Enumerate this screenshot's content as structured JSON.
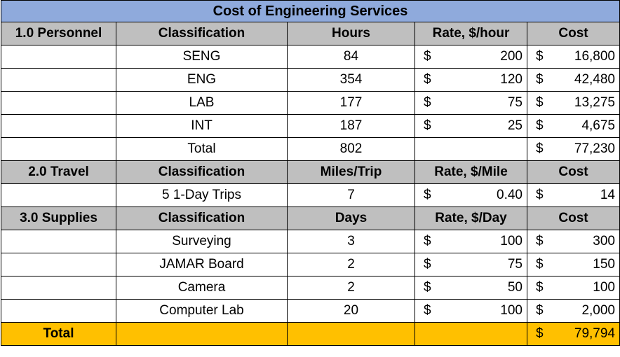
{
  "title": "Cost of Engineering Services",
  "personnel": {
    "section": "1.0 Personnel",
    "headers": [
      "Classification",
      "Hours",
      "Rate, $/hour",
      "Cost"
    ],
    "rows": [
      {
        "classification": "SENG",
        "hours": "84",
        "rate": "200",
        "cost": "16,800"
      },
      {
        "classification": "ENG",
        "hours": "354",
        "rate": "120",
        "cost": "42,480"
      },
      {
        "classification": "LAB",
        "hours": "177",
        "rate": "75",
        "cost": "13,275"
      },
      {
        "classification": "INT",
        "hours": "187",
        "rate": "25",
        "cost": "4,675"
      }
    ],
    "total": {
      "label": "Total",
      "hours": "802",
      "cost": "77,230"
    }
  },
  "travel": {
    "section": "2.0 Travel",
    "headers": [
      "Classification",
      "Miles/Trip",
      "Rate, $/Mile",
      "Cost"
    ],
    "rows": [
      {
        "classification": "5 1-Day Trips",
        "qty": "7",
        "rate": "0.40",
        "cost": "14"
      }
    ]
  },
  "supplies": {
    "section": "3.0 Supplies",
    "headers": [
      "Classification",
      "Days",
      "Rate, $/Day",
      "Cost"
    ],
    "rows": [
      {
        "classification": "Surveying",
        "qty": "3",
        "rate": "100",
        "cost": "300"
      },
      {
        "classification": "JAMAR Board",
        "qty": "2",
        "rate": "75",
        "cost": "150"
      },
      {
        "classification": "Camera",
        "qty": "2",
        "rate": "50",
        "cost": "100"
      },
      {
        "classification": "Computer Lab",
        "qty": "20",
        "rate": "100",
        "cost": "2,000"
      }
    ]
  },
  "grand_total": {
    "label": "Total",
    "cost": "79,794"
  },
  "currency_symbol": "$",
  "colors": {
    "title_bg": "#8faadc",
    "header_bg": "#bfbfbf",
    "total_bg": "#ffc000"
  }
}
